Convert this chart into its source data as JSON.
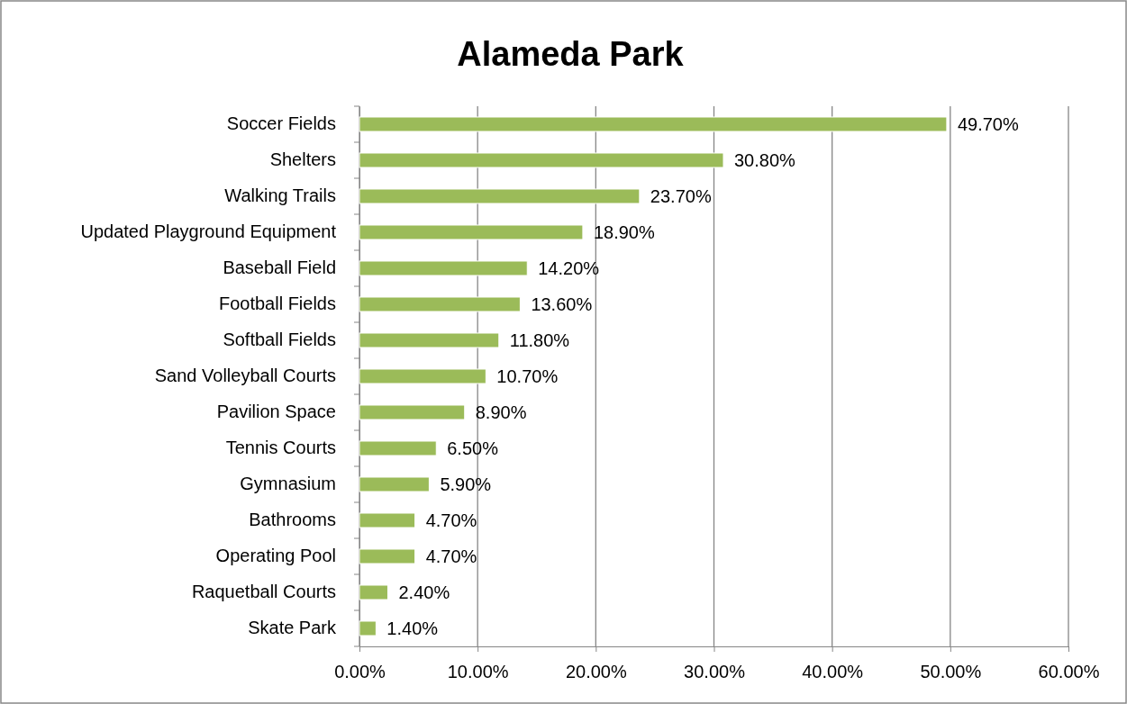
{
  "chart_data": {
    "type": "bar",
    "title": "Alameda Park",
    "orientation": "horizontal",
    "categories": [
      "Soccer Fields",
      "Shelters",
      "Walking Trails",
      "Updated Playground Equipment",
      "Baseball Field",
      "Football Fields",
      "Softball Fields",
      "Sand Volleyball Courts",
      "Pavilion Space",
      "Tennis Courts",
      "Gymnasium",
      "Bathrooms",
      "Operating Pool",
      "Raquetball Courts",
      "Skate Park"
    ],
    "values": [
      49.7,
      30.8,
      23.7,
      18.9,
      14.2,
      13.6,
      11.8,
      10.7,
      8.9,
      6.5,
      5.9,
      4.7,
      4.7,
      2.4,
      1.4
    ],
    "value_labels": [
      "49.70%",
      "30.80%",
      "23.70%",
      "18.90%",
      "14.20%",
      "13.60%",
      "11.80%",
      "10.70%",
      "8.90%",
      "6.50%",
      "5.90%",
      "4.70%",
      "4.70%",
      "2.40%",
      "1.40%"
    ],
    "color": "#9bbb59",
    "xlim": [
      0,
      60
    ],
    "xticks": [
      {
        "value": 0,
        "label": "0.00%"
      },
      {
        "value": 10,
        "label": "10.00%"
      },
      {
        "value": 20,
        "label": "20.00%"
      },
      {
        "value": 30,
        "label": "30.00%"
      },
      {
        "value": 40,
        "label": "40.00%"
      },
      {
        "value": 50,
        "label": "50.00%"
      },
      {
        "value": 60,
        "label": "60.00%"
      }
    ],
    "grid": "x"
  }
}
